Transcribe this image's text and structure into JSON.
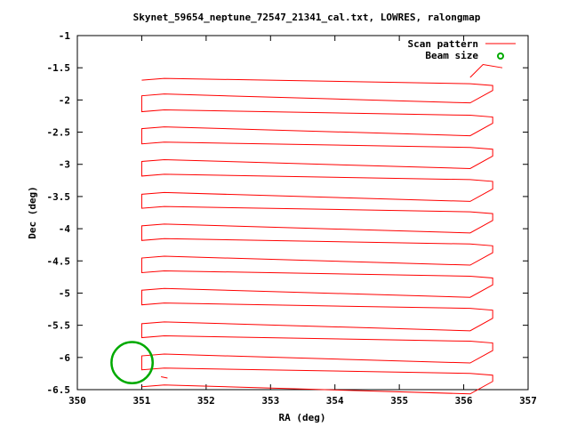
{
  "chart_data": {
    "type": "line",
    "title": "Skynet_59654_neptune_72547_21341_cal.txt, LOWRES, ralongmap",
    "xlabel": "RA (deg)",
    "ylabel": "Dec (deg)",
    "xlim": [
      350,
      357
    ],
    "ylim": [
      -6.5,
      -1
    ],
    "xticks": [
      "350",
      "351",
      "352",
      "353",
      "354",
      "355",
      "356",
      "357"
    ],
    "yticks": [
      "-1",
      "-1.5",
      "-2",
      "-2.5",
      "-3",
      "-3.5",
      "-4",
      "-4.5",
      "-5",
      "-5.5",
      "-6",
      "-6.5"
    ],
    "grid": false,
    "legend_position": "top-right",
    "series": [
      {
        "name": "Scan pattern",
        "color": "#ff0000",
        "kind": "raster-scan",
        "ra_start": 351.0,
        "ra_end": 356.45,
        "dec_rows": [
          -1.72,
          -1.88,
          -2.21,
          -2.39,
          -2.71,
          -2.9,
          -3.21,
          -3.41,
          -3.71,
          -3.9,
          -4.21,
          -4.4,
          -4.71,
          -4.9,
          -5.21,
          -5.42,
          -5.72,
          -5.92,
          -6.22,
          -6.4
        ],
        "extra_points": [
          [
            351.3,
            -6.3
          ],
          [
            351.4,
            -6.32
          ],
          [
            356.1,
            -1.65
          ],
          [
            356.3,
            -1.45
          ],
          [
            356.6,
            -1.5
          ]
        ]
      },
      {
        "name": "Beam size",
        "color": "#00aa00",
        "kind": "circle",
        "center": [
          350.85,
          -6.08
        ],
        "radius_deg": 0.32
      }
    ]
  }
}
